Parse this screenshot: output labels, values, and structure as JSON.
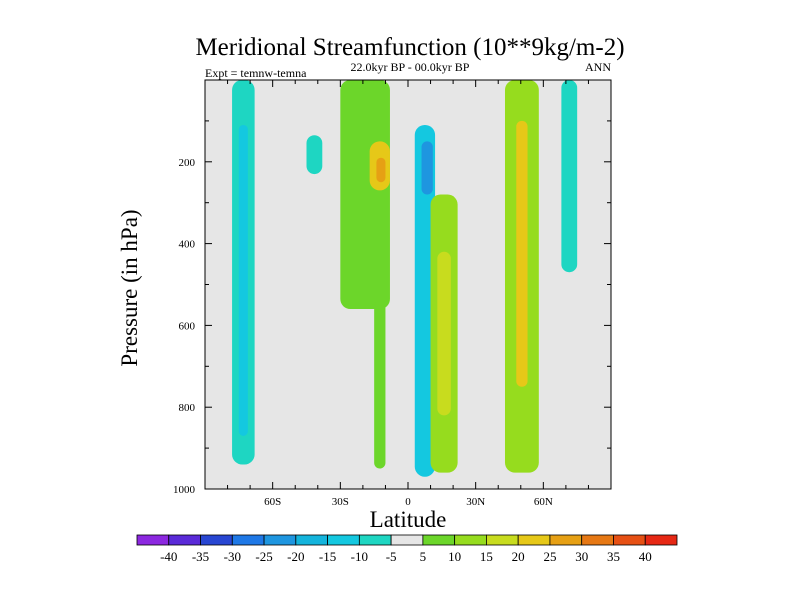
{
  "chart_data": {
    "type": "heatmap",
    "title": "Meridional Streamfunction (10**9kg/m-2)",
    "subtitle": "22.0kyr BP - 00.0kyr BP",
    "left_label": "Expt = temnw-temna",
    "right_label": "ANN",
    "xlabel": "Latitude",
    "ylabel": "Pressure (in hPa)",
    "xlim": [
      -90,
      90
    ],
    "ylim": [
      0,
      1000
    ],
    "y_inverted": true,
    "xticks": [
      {
        "value": -60,
        "label": "60S"
      },
      {
        "value": -30,
        "label": "30S"
      },
      {
        "value": 0,
        "label": "0"
      },
      {
        "value": 30,
        "label": "30N"
      },
      {
        "value": 60,
        "label": "60N"
      }
    ],
    "yticks": [
      {
        "value": 200,
        "label": "200"
      },
      {
        "value": 400,
        "label": "400"
      },
      {
        "value": 600,
        "label": "600"
      },
      {
        "value": 800,
        "label": "800"
      },
      {
        "value": 1000,
        "label": "1000"
      }
    ],
    "background_color": "#e6e6e6",
    "colorbar": {
      "levels": [
        -40,
        -35,
        -30,
        -25,
        -20,
        -15,
        -10,
        -5,
        5,
        10,
        15,
        20,
        25,
        30,
        35,
        40
      ],
      "labels": [
        "-40",
        "-35",
        "-30",
        "-25",
        "-20",
        "-15",
        "-10",
        "-5",
        "5",
        "10",
        "15",
        "20",
        "25",
        "30",
        "35",
        "40"
      ],
      "colors": [
        "#8c28e0",
        "#5a2ad8",
        "#2846d2",
        "#1e78e6",
        "#1e96e0",
        "#14b4dc",
        "#14c8e0",
        "#1ed6c2",
        "#e6e6e6",
        "#6cd62a",
        "#96dc1e",
        "#c8dc1e",
        "#e6c818",
        "#e6a014",
        "#e67814",
        "#e65014",
        "#e62814"
      ]
    },
    "features": [
      {
        "name": "deep-cyan-band-70S",
        "lat": [
          -78,
          -68
        ],
        "p": [
          0,
          940
        ],
        "value": -8
      },
      {
        "name": "inner-cyan-band-70S",
        "lat": [
          -75,
          -71
        ],
        "p": [
          110,
          870
        ],
        "value": -11
      },
      {
        "name": "small-cyan-blob-45S",
        "lat": [
          -45,
          -38
        ],
        "p": [
          135,
          230
        ],
        "value": -7
      },
      {
        "name": "green-cell-20S",
        "lat": [
          -30,
          -8
        ],
        "p": [
          0,
          560
        ],
        "value": 7
      },
      {
        "name": "yellow-core-20S",
        "lat": [
          -17,
          -8
        ],
        "p": [
          150,
          270
        ],
        "value": 20
      },
      {
        "name": "orange-core-20S",
        "lat": [
          -14,
          -10
        ],
        "p": [
          190,
          250
        ],
        "value": 25
      },
      {
        "name": "green-strip-10S",
        "lat": [
          -15,
          -10
        ],
        "p": [
          540,
          950
        ],
        "value": 6
      },
      {
        "name": "blue-cell-eq",
        "lat": [
          3,
          12
        ],
        "p": [
          110,
          970
        ],
        "value": -12
      },
      {
        "name": "dark-blue-core-eq",
        "lat": [
          6,
          11
        ],
        "p": [
          150,
          280
        ],
        "value": -22
      },
      {
        "name": "green-column-15N",
        "lat": [
          10,
          22
        ],
        "p": [
          280,
          960
        ],
        "value": 10
      },
      {
        "name": "yellow-column-15N",
        "lat": [
          13,
          19
        ],
        "p": [
          420,
          820
        ],
        "value": 17
      },
      {
        "name": "green-column-50N",
        "lat": [
          43,
          58
        ],
        "p": [
          0,
          960
        ],
        "value": 10
      },
      {
        "name": "orange-core-50N",
        "lat": [
          48,
          53
        ],
        "p": [
          100,
          750
        ],
        "value": 23
      },
      {
        "name": "cyan-band-72N",
        "lat": [
          68,
          75
        ],
        "p": [
          0,
          470
        ],
        "value": -6
      }
    ]
  }
}
